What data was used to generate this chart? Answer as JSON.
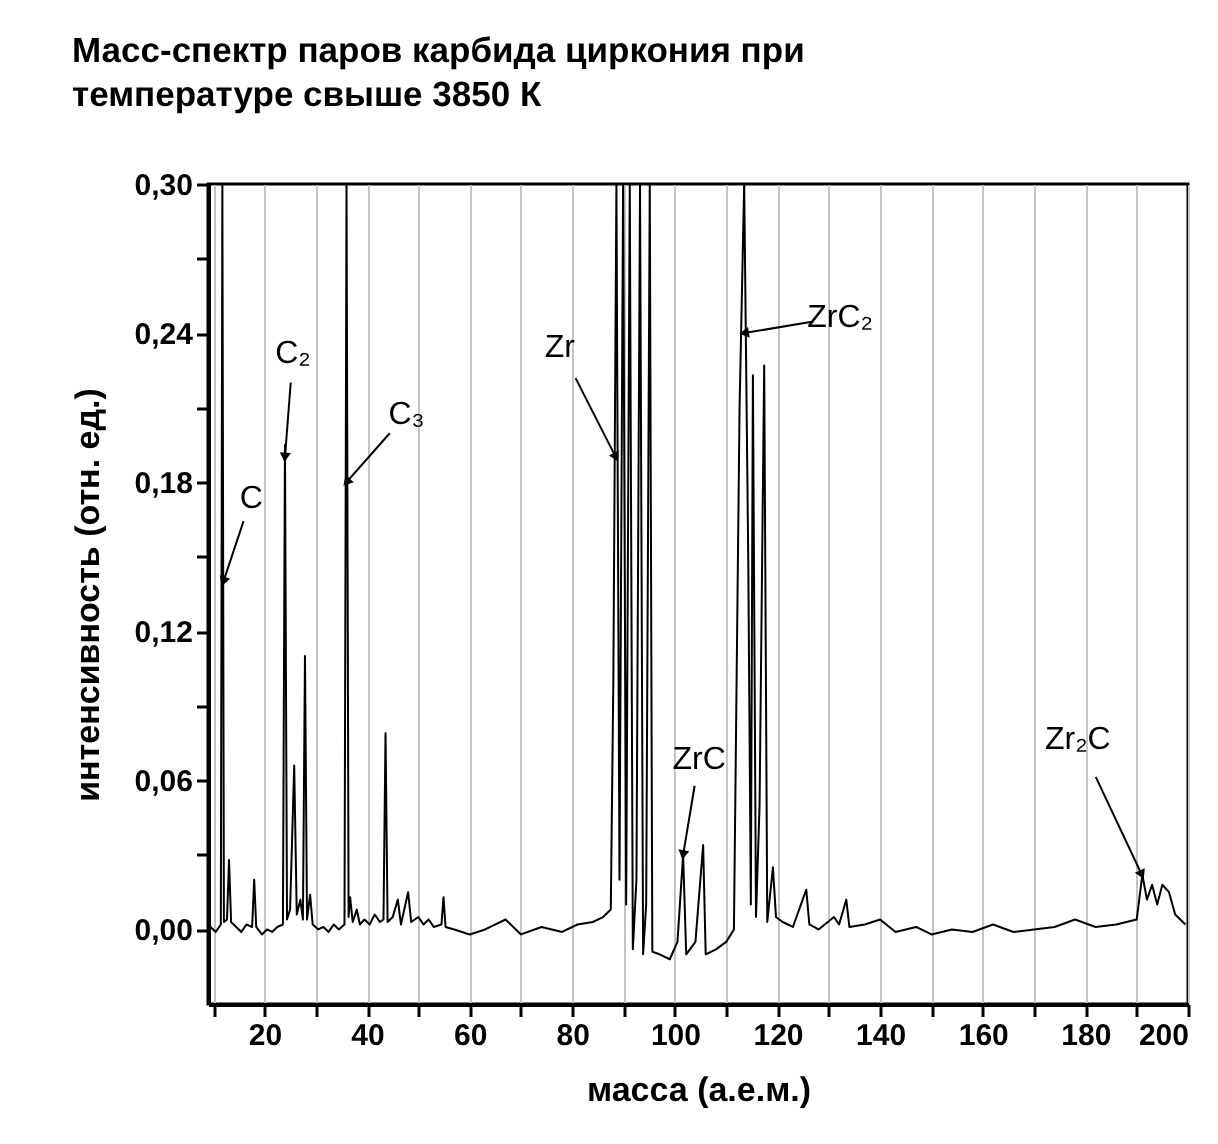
{
  "chart_data": {
    "type": "line",
    "title": "Масс-спектр паров карбида циркония при температуре свыше 3850 К",
    "xlabel": "масса (а.е.м.)",
    "ylabel": "интенсивность (отн. ед.)",
    "x": [
      9.5,
      10.5,
      11.5,
      11.8,
      12.1,
      12.7,
      13.1,
      13.5,
      14.5,
      15.5,
      16.5,
      17.6,
      18,
      18.4,
      19.5,
      20.5,
      21.5,
      22.5,
      23.6,
      24,
      24.4,
      25,
      25.8,
      26.3,
      27,
      27.5,
      27.9,
      28.3,
      28.9,
      29.4,
      30.5,
      31.5,
      32.5,
      33.5,
      34.5,
      35.6,
      36,
      36.4,
      36.7,
      37.2,
      38,
      38.6,
      39.5,
      40.5,
      41.5,
      42.5,
      43.2,
      43.6,
      44,
      45,
      46,
      46.6,
      48,
      48.6,
      50,
      51,
      52,
      53,
      54.5,
      54.9,
      55.3,
      57,
      60,
      63,
      67,
      70,
      74,
      78,
      81,
      84,
      86,
      87.5,
      88,
      88.6,
      89.2,
      89.9,
      90.5,
      91.2,
      91.8,
      92.5,
      93.2,
      93.8,
      94.4,
      95.1,
      95.6,
      97,
      99,
      100.5,
      101.6,
      102.2,
      104,
      105.5,
      106,
      108,
      110,
      111.5,
      112.6,
      113.5,
      114.3,
      114.8,
      115.2,
      115.8,
      116.5,
      117.4,
      118,
      119.1,
      119.7,
      121,
      123,
      125.6,
      126.2,
      128,
      131,
      132,
      133.4,
      134,
      137,
      140,
      143,
      147,
      150,
      154,
      158,
      162,
      166,
      170,
      174,
      178,
      182,
      186,
      190,
      191.1,
      192,
      193,
      194,
      195,
      196.3,
      197.5,
      199.5
    ],
    "series": [
      {
        "color": "#000000",
        "values": [
          0.001,
          -0.001,
          0.002,
          0.3,
          0.003,
          0.004,
          0.028,
          0.003,
          0.001,
          -0.001,
          0.002,
          0.001,
          0.02,
          0.001,
          -0.002,
          0,
          -0.001,
          0.001,
          0.002,
          0.195,
          0.004,
          0.008,
          0.066,
          0.006,
          0.012,
          0.004,
          0.11,
          0.004,
          0.014,
          0.002,
          0,
          0.001,
          -0.001,
          0.002,
          0,
          0.002,
          0.3,
          0.005,
          0.013,
          0.003,
          0.008,
          0.002,
          0.004,
          0.002,
          0.006,
          0.003,
          0.004,
          0.079,
          0.003,
          0.005,
          0.012,
          0.002,
          0.015,
          0.003,
          0.005,
          0.002,
          0.004,
          0.001,
          0.002,
          0.013,
          0.001,
          0,
          -0.002,
          0,
          0.004,
          -0.002,
          0.001,
          -0.001,
          0.002,
          0.003,
          0.005,
          0.008,
          0.1,
          0.3,
          0.02,
          0.3,
          0.01,
          0.3,
          -0.008,
          0.02,
          0.3,
          -0.01,
          0.01,
          0.3,
          -0.009,
          -0.01,
          -0.012,
          -0.005,
          0.03,
          -0.01,
          -0.005,
          0.034,
          -0.01,
          -0.008,
          -0.005,
          0,
          0.21,
          0.3,
          0.148,
          0.01,
          0.223,
          0.005,
          0.05,
          0.227,
          0.003,
          0.025,
          0.005,
          0.003,
          0.001,
          0.016,
          0.002,
          0,
          0.005,
          0.002,
          0.012,
          0.001,
          0.002,
          0.004,
          -0.001,
          0.001,
          -0.002,
          0,
          -0.001,
          0.002,
          -0.001,
          0,
          0.001,
          0.004,
          0.001,
          0.002,
          0.004,
          0.022,
          0.012,
          0.018,
          0.01,
          0.018,
          0.015,
          0.006,
          0.002
        ]
      }
    ],
    "xlim": [
      9,
      200
    ],
    "ylim": [
      -0.03,
      0.3
    ],
    "xticks": [
      {
        "value": 10,
        "label": null
      },
      20,
      {
        "value": 30,
        "label": null
      },
      40,
      {
        "value": 50,
        "label": null
      },
      60,
      {
        "value": 70,
        "label": null
      },
      80,
      {
        "value": 90,
        "label": null
      },
      100,
      {
        "value": 110,
        "label": null
      },
      120,
      {
        "value": 130,
        "label": null
      },
      140,
      {
        "value": 150,
        "label": null
      },
      160,
      {
        "value": 170,
        "label": null
      },
      180,
      {
        "value": 190,
        "label": null
      },
      200
    ],
    "yticks": [
      {
        "value": 0,
        "label": "0,00"
      },
      {
        "value": 0.03,
        "label": null
      },
      {
        "value": 0.06,
        "label": "0,06"
      },
      {
        "value": 0.09,
        "label": null
      },
      {
        "value": 0.12,
        "label": "0,12"
      },
      {
        "value": 0.15,
        "label": null
      },
      {
        "value": 0.18,
        "label": "0,18"
      },
      {
        "value": 0.21,
        "label": null
      },
      {
        "value": 0.24,
        "label": "0,24"
      },
      {
        "value": 0.27,
        "label": null
      },
      {
        "value": 0.3,
        "label": "0,30"
      }
    ],
    "grid": "x",
    "marker": "none",
    "line_style": "solid",
    "annotations": [
      {
        "text": "C",
        "x": 12,
        "y": 0.14
      },
      {
        "text": "C₂",
        "x": 24,
        "y": 0.19
      },
      {
        "text": "C₃",
        "x": 36,
        "y": 0.18
      },
      {
        "text": "Zr",
        "x": 88.5,
        "y": 0.19
      },
      {
        "text": "ZrC",
        "x": 101.6,
        "y": 0.03
      },
      {
        "text": "ZrC₂",
        "x": 113.5,
        "y": 0.24
      },
      {
        "text": "Zr₂C",
        "x": 191,
        "y": 0.022
      }
    ]
  }
}
